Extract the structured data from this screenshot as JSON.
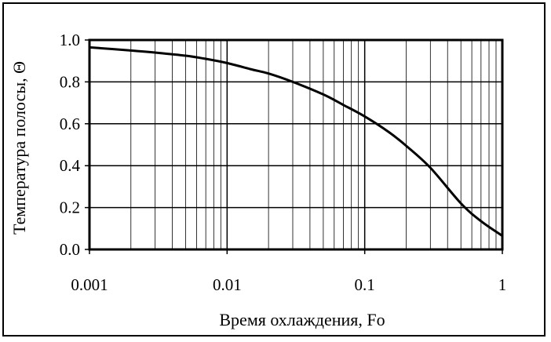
{
  "chart_data": {
    "type": "line",
    "title": "",
    "xlabel": "Время охлаждения, Fo",
    "ylabel": "Температура полосы, ",
    "ylabel_symbol": "Θ",
    "x_scale": "log",
    "xlim": [
      0.001,
      1
    ],
    "ylim": [
      0.0,
      1.0
    ],
    "x_tick_labels": [
      "0.001",
      "0.01",
      "0.1",
      "1"
    ],
    "y_tick_labels": [
      "0.0",
      "0.2",
      "0.4",
      "0.6",
      "0.8",
      "1.0"
    ],
    "grid": true,
    "legend": "none",
    "line_color": "#000000",
    "series": [
      {
        "x": [
          0.001,
          0.002,
          0.003,
          0.005,
          0.007,
          0.01,
          0.015,
          0.02,
          0.03,
          0.05,
          0.07,
          0.1,
          0.15,
          0.2,
          0.3,
          0.5,
          0.7,
          1.0
        ],
        "y": [
          0.965,
          0.95,
          0.94,
          0.925,
          0.91,
          0.89,
          0.86,
          0.84,
          0.8,
          0.74,
          0.69,
          0.635,
          0.56,
          0.495,
          0.39,
          0.22,
          0.135,
          0.065
        ]
      }
    ]
  }
}
